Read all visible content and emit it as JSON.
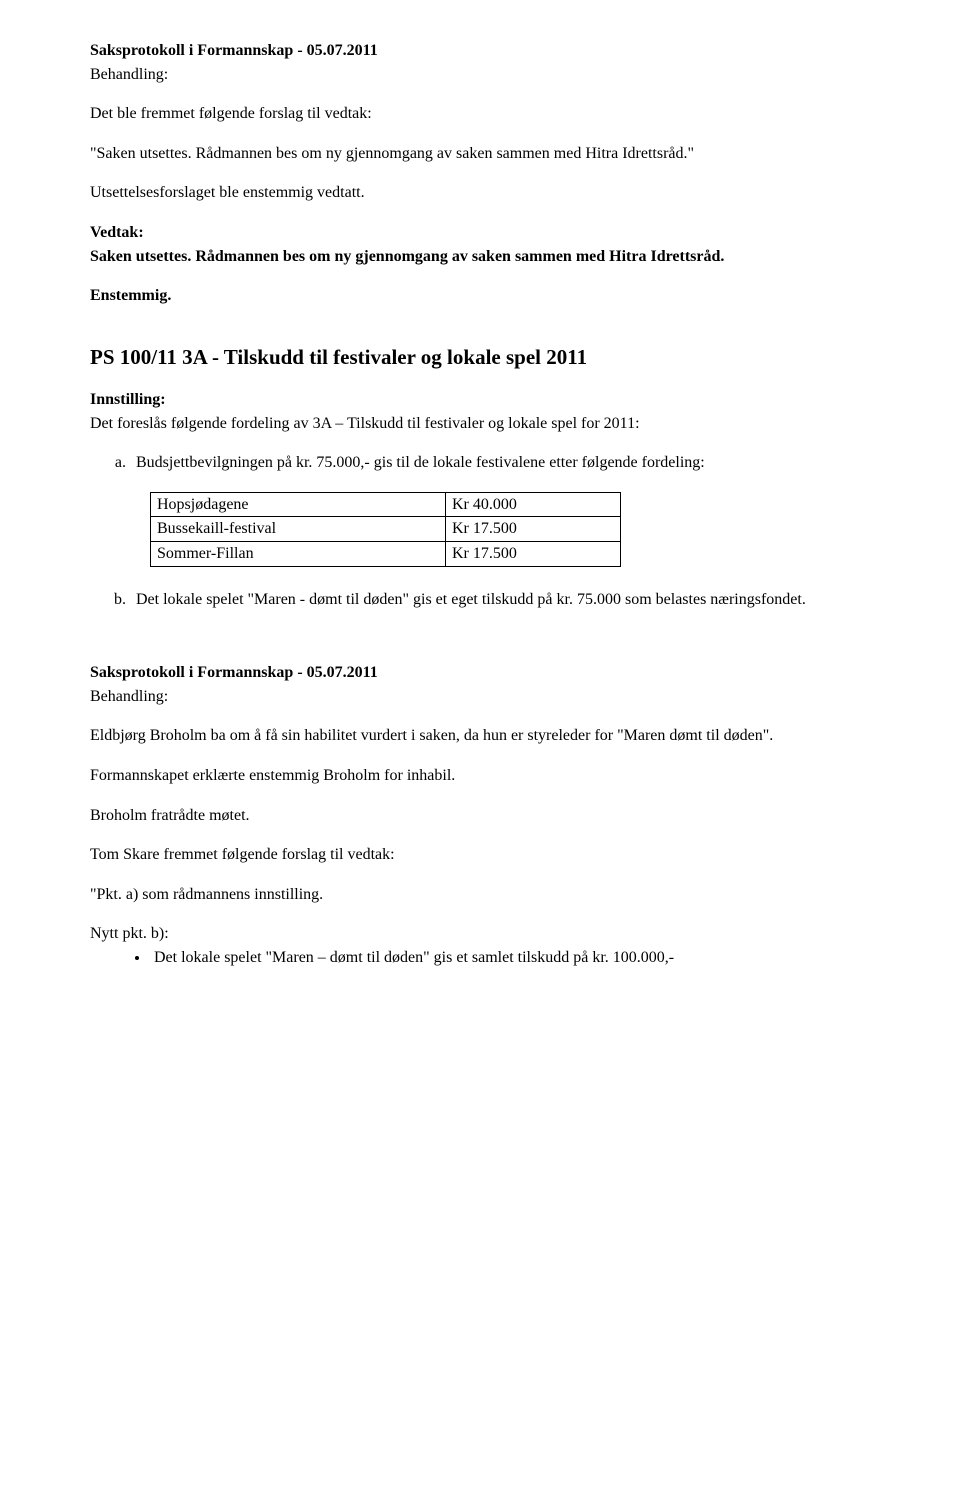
{
  "header": {
    "title": "Saksprotokoll i Formannskap - 05.07.2011",
    "behandling_label": "Behandling:"
  },
  "intro": {
    "line1": "Det ble fremmet følgende forslag til vedtak:",
    "line2": "\"Saken utsettes. Rådmannen bes om ny gjennomgang av saken sammen med Hitra Idrettsråd.\"",
    "line3": "Utsettelsesforslaget ble enstemmig vedtatt."
  },
  "vedtak": {
    "label": "Vedtak:",
    "line1": "Saken utsettes. Rådmannen bes om ny gjennomgang av saken sammen med Hitra Idrettsråd.",
    "enstemmig": "Enstemmig."
  },
  "ps100": {
    "heading": "PS 100/11 3A - Tilskudd til festivaler og lokale spel 2011",
    "innstilling_label": "Innstilling:",
    "intro": "Det foreslås følgende fordeling av 3A – Tilskudd til festivaler og lokale spel for 2011:",
    "item_a": "Budsjettbevilgningen på kr. 75.000,- gis til de lokale festivalene etter følgende fordeling:",
    "table": {
      "rows": [
        {
          "name": "Hopsjødagene",
          "amount": "Kr 40.000"
        },
        {
          "name": "Bussekaill-festival",
          "amount": "Kr 17.500"
        },
        {
          "name": "Sommer-Fillan",
          "amount": "Kr 17.500"
        }
      ]
    },
    "item_b": "Det lokale spelet \"Maren - dømt til døden\" gis et eget tilskudd på kr. 75.000 som belastes næringsfondet."
  },
  "footer": {
    "title": "Saksprotokoll i Formannskap - 05.07.2011",
    "behandling_label": "Behandling:",
    "p1": "Eldbjørg Broholm ba om å få sin habilitet vurdert i saken, da hun er styreleder for \"Maren dømt til døden\".",
    "p2": "Formannskapet erklærte enstemmig Broholm for inhabil.",
    "p3": "Broholm fratrådte møtet.",
    "p4": "Tom Skare fremmet følgende forslag til vedtak:",
    "p5": "\"Pkt. a) som rådmannens innstilling.",
    "p6": "Nytt pkt. b):",
    "bullet1": "Det lokale spelet \"Maren – dømt til døden\" gis et samlet tilskudd på kr. 100.000,-"
  }
}
